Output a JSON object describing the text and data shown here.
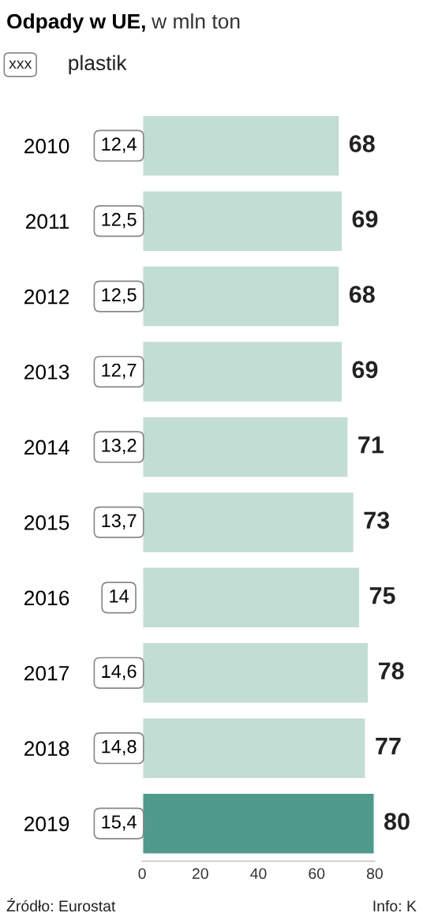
{
  "chart_data": {
    "type": "bar",
    "orientation": "horizontal",
    "title": "Odpady w UE,",
    "subtitle": "w mln ton",
    "categories": [
      "2010",
      "2011",
      "2012",
      "2013",
      "2014",
      "2015",
      "2016",
      "2017",
      "2018",
      "2019"
    ],
    "values": [
      68,
      69,
      68,
      69,
      71,
      73,
      75,
      78,
      77,
      80
    ],
    "colors": [
      "#c2ddd4",
      "#c2ddd4",
      "#c2ddd4",
      "#c2ddd4",
      "#c2ddd4",
      "#c2ddd4",
      "#c2ddd4",
      "#c2ddd4",
      "#c2ddd4",
      "#4f9a8c"
    ],
    "xlim": [
      0,
      80
    ],
    "xticks": [
      0,
      20,
      40,
      60,
      80
    ],
    "grid": false,
    "data_labels": true,
    "annotations": [
      "12,4",
      "12,5",
      "12,5",
      "12,7",
      "13,2",
      "13,7",
      "14",
      "14,6",
      "14,8",
      "15,4",
      "xxx",
      "plastik",
      "Źródło: Eurostat",
      "Info: K"
    ]
  }
}
